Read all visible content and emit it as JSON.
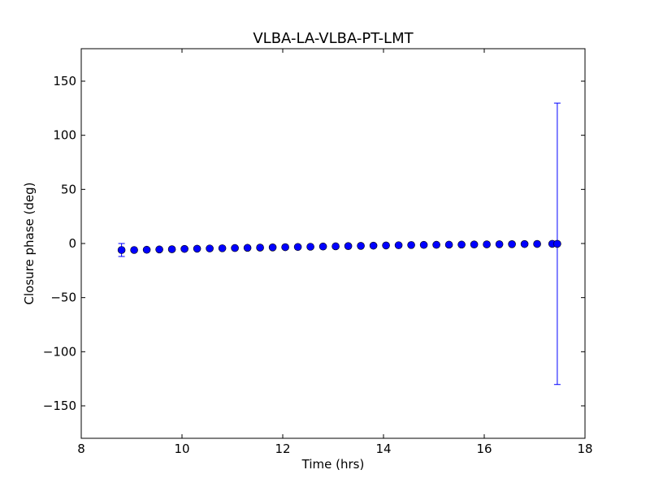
{
  "chart_data": {
    "type": "scatter",
    "title": "VLBA-LA-VLBA-PT-LMT",
    "xlabel": "Time (hrs)",
    "ylabel": "Closure phase (deg)",
    "xlim": [
      8,
      18
    ],
    "ylim": [
      -180,
      180
    ],
    "xticks": [
      8,
      10,
      12,
      14,
      16,
      18
    ],
    "yticks": [
      -150,
      -100,
      -50,
      0,
      50,
      100,
      150
    ],
    "xtick_labels": [
      "8",
      "10",
      "12",
      "14",
      "16",
      "18"
    ],
    "ytick_labels": [
      "−150",
      "−100",
      "−50",
      "0",
      "50",
      "100",
      "150"
    ],
    "grid": false,
    "marker_color": "#0000ff",
    "series": [
      {
        "x": [
          8.8,
          9.05,
          9.3,
          9.55,
          9.8,
          10.05,
          10.3,
          10.55,
          10.8,
          11.05,
          11.3,
          11.55,
          11.8,
          12.05,
          12.3,
          12.55,
          12.8,
          13.05,
          13.3,
          13.55,
          13.8,
          14.05,
          14.3,
          14.55,
          14.8,
          15.05,
          15.3,
          15.55,
          15.8,
          16.05,
          16.3,
          16.55,
          16.8,
          17.05,
          17.35,
          17.45
        ],
        "y": [
          -6.0,
          -6.0,
          -5.8,
          -5.5,
          -5.3,
          -5.0,
          -4.8,
          -4.6,
          -4.4,
          -4.2,
          -4.0,
          -3.8,
          -3.6,
          -3.4,
          -3.2,
          -3.0,
          -2.8,
          -2.6,
          -2.4,
          -2.2,
          -2.0,
          -1.8,
          -1.6,
          -1.4,
          -1.3,
          -1.2,
          -1.1,
          -1.0,
          -0.9,
          -0.8,
          -0.7,
          -0.6,
          -0.5,
          -0.4,
          -0.3,
          -0.3
        ],
        "yerr": [
          6.0,
          0,
          0,
          0,
          0,
          0,
          0,
          0,
          0,
          0,
          0,
          0,
          0,
          0,
          0,
          0,
          0,
          0,
          0,
          0,
          0,
          0,
          0,
          0,
          0,
          0,
          0,
          0,
          0,
          0,
          0,
          0,
          0,
          0,
          0,
          130.0
        ]
      }
    ]
  }
}
